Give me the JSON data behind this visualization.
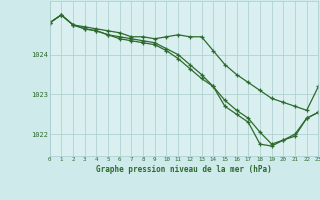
{
  "background_color": "#ceeaea",
  "plot_bg_color": "#daf0f0",
  "grid_color": "#aacccc",
  "line_color": "#2d6a2d",
  "marker_color": "#2d6a2d",
  "xlabel": "Graphe pression niveau de la mer (hPa)",
  "xlabel_color": "#2d6a2d",
  "tick_color": "#2d6a2d",
  "ylim": [
    1021.45,
    1025.35
  ],
  "yticks": [
    1022,
    1023,
    1024
  ],
  "xlim": [
    0,
    23
  ],
  "xticks": [
    0,
    1,
    2,
    3,
    4,
    5,
    6,
    7,
    8,
    9,
    10,
    11,
    12,
    13,
    14,
    15,
    16,
    17,
    18,
    19,
    20,
    21,
    22,
    23
  ],
  "series1_x": [
    0,
    1,
    2,
    3,
    4,
    5,
    6,
    7,
    8,
    9,
    10,
    11,
    12,
    13,
    14,
    15,
    16,
    17,
    18,
    19,
    20,
    21,
    22,
    23
  ],
  "series1_y": [
    1024.8,
    1025.0,
    1024.75,
    1024.7,
    1024.65,
    1024.6,
    1024.55,
    1024.45,
    1024.45,
    1024.4,
    1024.45,
    1024.5,
    1024.45,
    1024.45,
    1024.1,
    1023.75,
    1023.5,
    1023.3,
    1023.1,
    1022.9,
    1022.8,
    1022.7,
    1022.6,
    1023.2
  ],
  "series2_x": [
    0,
    1,
    2,
    3,
    4,
    5,
    6,
    7,
    8,
    9,
    10,
    11,
    12,
    13,
    14,
    15,
    16,
    17,
    18,
    19,
    20,
    21,
    22,
    23
  ],
  "series2_y": [
    1024.8,
    1025.0,
    1024.75,
    1024.65,
    1024.6,
    1024.5,
    1024.45,
    1024.4,
    1024.35,
    1024.3,
    1024.15,
    1024.0,
    1023.75,
    1023.5,
    1023.2,
    1022.85,
    1022.6,
    1022.4,
    1022.05,
    1021.75,
    1021.85,
    1022.0,
    1022.4,
    1022.55
  ],
  "series3_x": [
    0,
    1,
    2,
    3,
    4,
    5,
    6,
    7,
    8,
    9,
    10,
    11,
    12,
    13,
    14,
    15,
    16,
    17,
    18,
    19,
    20,
    21,
    22,
    23
  ],
  "series3_y": [
    1024.8,
    1025.0,
    1024.75,
    1024.65,
    1024.6,
    1024.5,
    1024.4,
    1024.35,
    1024.3,
    1024.25,
    1024.1,
    1023.9,
    1023.65,
    1023.4,
    1023.2,
    1022.7,
    1022.5,
    1022.3,
    1021.75,
    1021.7,
    1021.85,
    1021.95,
    1022.4,
    1022.55
  ]
}
